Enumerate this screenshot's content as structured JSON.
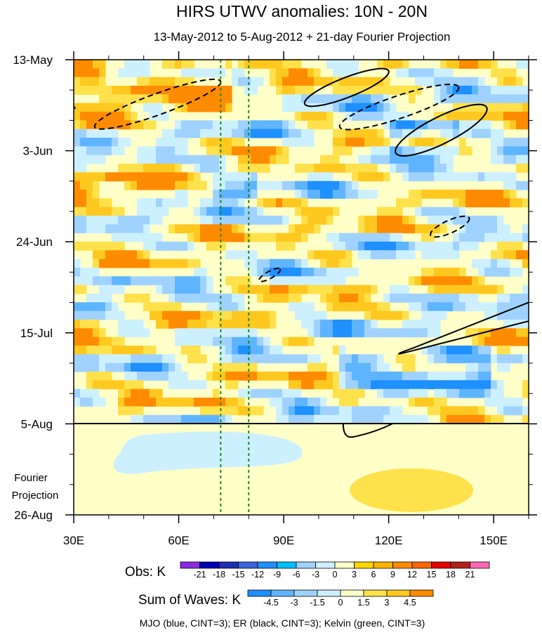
{
  "chart_data": {
    "type": "heatmap",
    "title": "HIRS UTWV anomalies: 10N - 20N",
    "subtitle": "13-May-2012 to 5-Aug-2012 + 21-day Fourier Projection",
    "x_ticks": [
      {
        "label": "30E",
        "value": 30
      },
      {
        "label": "60E",
        "value": 60
      },
      {
        "label": "90E",
        "value": 90
      },
      {
        "label": "120E",
        "value": 120
      },
      {
        "label": "150E",
        "value": 150
      }
    ],
    "xlim": [
      30,
      160
    ],
    "y_ticks": [
      {
        "label": "13-May",
        "day": 0
      },
      {
        "label": "3-Jun",
        "day": 21
      },
      {
        "label": "24-Jun",
        "day": 42
      },
      {
        "label": "15-Jul",
        "day": 63
      },
      {
        "label": "5-Aug",
        "day": 84
      },
      {
        "label": "26-Aug",
        "day": 105
      }
    ],
    "ylim_days": [
      0,
      105
    ],
    "observation_end_day": 84,
    "projection_label": [
      "Fourier",
      "Projection"
    ],
    "kelvin_lines_lon": [
      72,
      80
    ],
    "legend_obs": {
      "title": "Obs: K",
      "labels": [
        "-21",
        "-18",
        "-15",
        "-12",
        "-9",
        "-6",
        "-3",
        "0",
        "3",
        "6",
        "9",
        "12",
        "15",
        "18",
        "21"
      ],
      "colors": [
        "#8a2be2",
        "#0000b4",
        "#1e2db4",
        "#3c64dc",
        "#1e90ff",
        "#00bfff",
        "#a0d2ff",
        "#cdf0ff",
        "#ffffc8",
        "#ffd700",
        "#ffb400",
        "#ff8c00",
        "#ff6400",
        "#e60000",
        "#b41e1e",
        "#ff69b4"
      ]
    },
    "legend_waves": {
      "title": "Sum of Waves: K",
      "labels": [
        "-4.5",
        "-3",
        "-1.5",
        "0",
        "1.5",
        "3",
        "4.5"
      ],
      "colors": [
        "#1e90ff",
        "#5fb4ff",
        "#a0d2ff",
        "#cdf0ff",
        "#ffffc8",
        "#ffe14b",
        "#ffc81e",
        "#ff8c00"
      ]
    },
    "footer": "MJO (blue, CINT=3); ER (black, CINT=3); Kelvin (green, CINT=3)"
  }
}
